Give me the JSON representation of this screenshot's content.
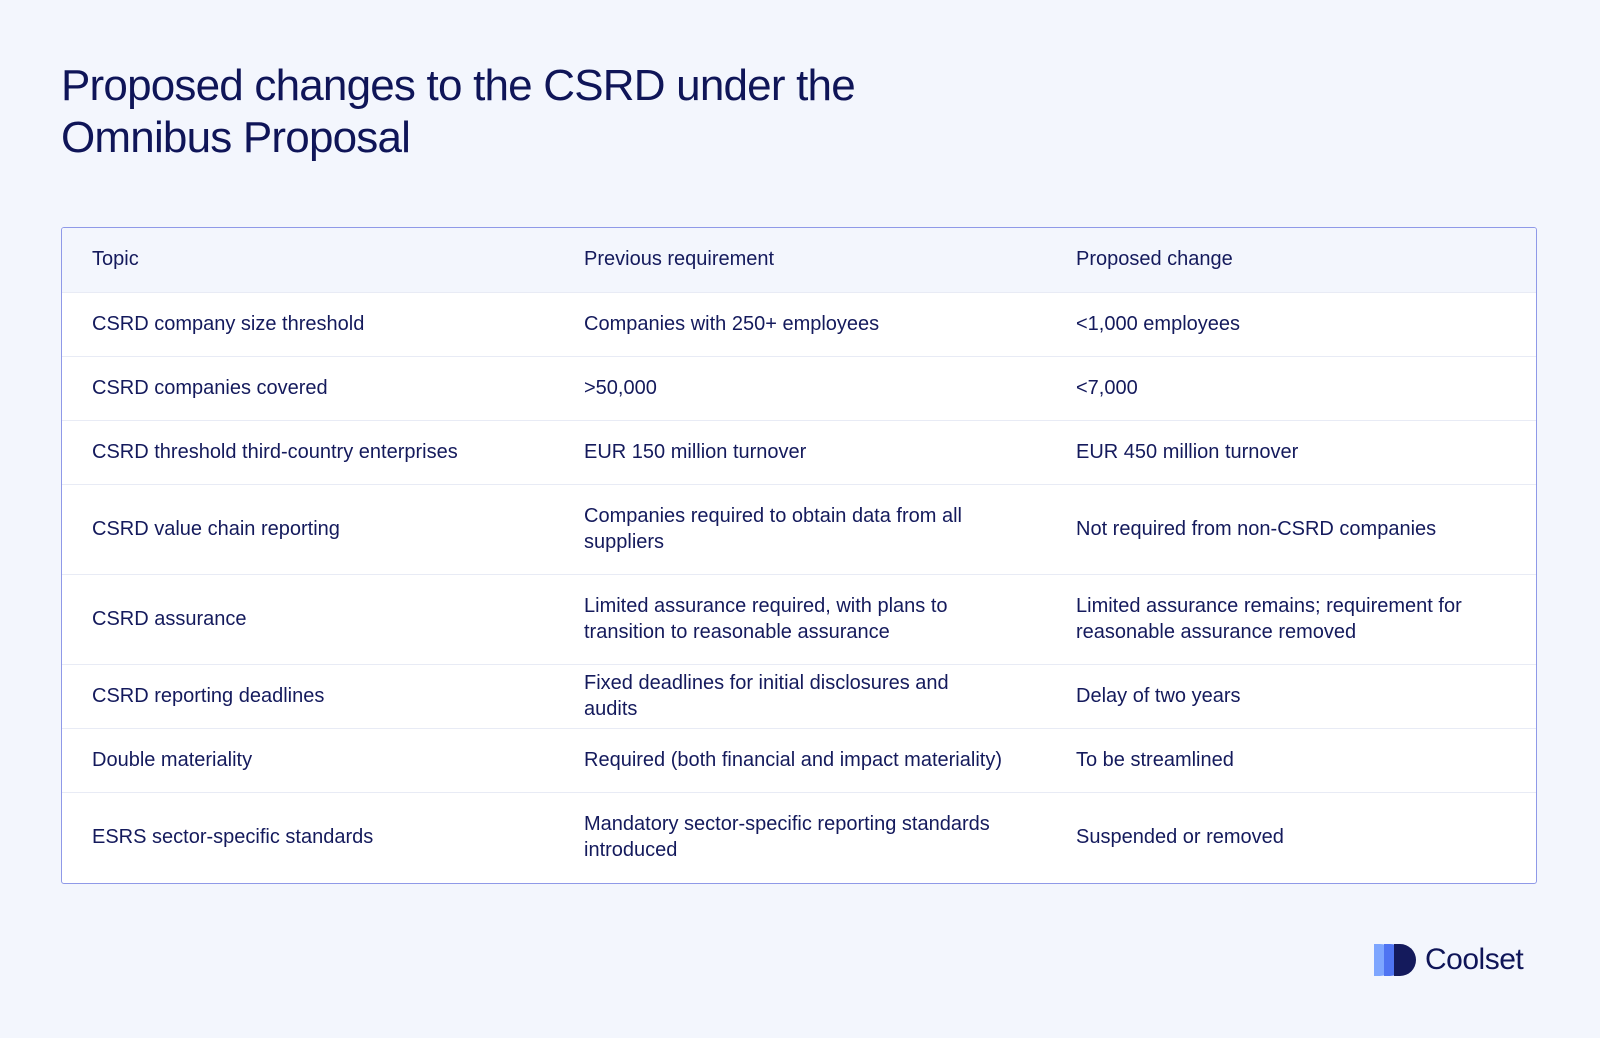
{
  "title": "Proposed changes to the CSRD under the Omnibus Proposal",
  "table": {
    "headers": [
      "Topic",
      "Previous requirement",
      "Proposed change"
    ],
    "rows": [
      [
        "CSRD company size threshold",
        "Companies with 250+ employees",
        "<1,000 employees"
      ],
      [
        "CSRD companies covered",
        ">50,000",
        "<7,000"
      ],
      [
        "CSRD threshold third-country enterprises",
        "EUR 150 million turnover",
        "EUR 450 million turnover"
      ],
      [
        "CSRD value chain reporting",
        "Companies required to obtain data from all suppliers",
        "Not required from non-CSRD companies"
      ],
      [
        "CSRD assurance",
        "Limited assurance required, with plans to transition to reasonable assurance",
        "Limited assurance remains; requirement for reasonable assurance removed"
      ],
      [
        "CSRD reporting deadlines",
        "Fixed deadlines for initial disclosures and audits",
        "Delay of two years"
      ],
      [
        "Double materiality",
        "Required (both financial and impact materiality)",
        "To be streamlined"
      ],
      [
        "ESRS sector-specific standards",
        "Mandatory sector-specific reporting standards introduced",
        "Suspended or removed"
      ]
    ]
  },
  "brand": {
    "name": "Coolset",
    "logo_icon": "coolset-logo-icon",
    "colors": {
      "text": "#141a5c",
      "border": "#8f99e8",
      "background": "#f3f6fd",
      "logo_light": "#7ea6ff",
      "logo_mid": "#4f74f2",
      "logo_dark": "#141a5c"
    }
  }
}
